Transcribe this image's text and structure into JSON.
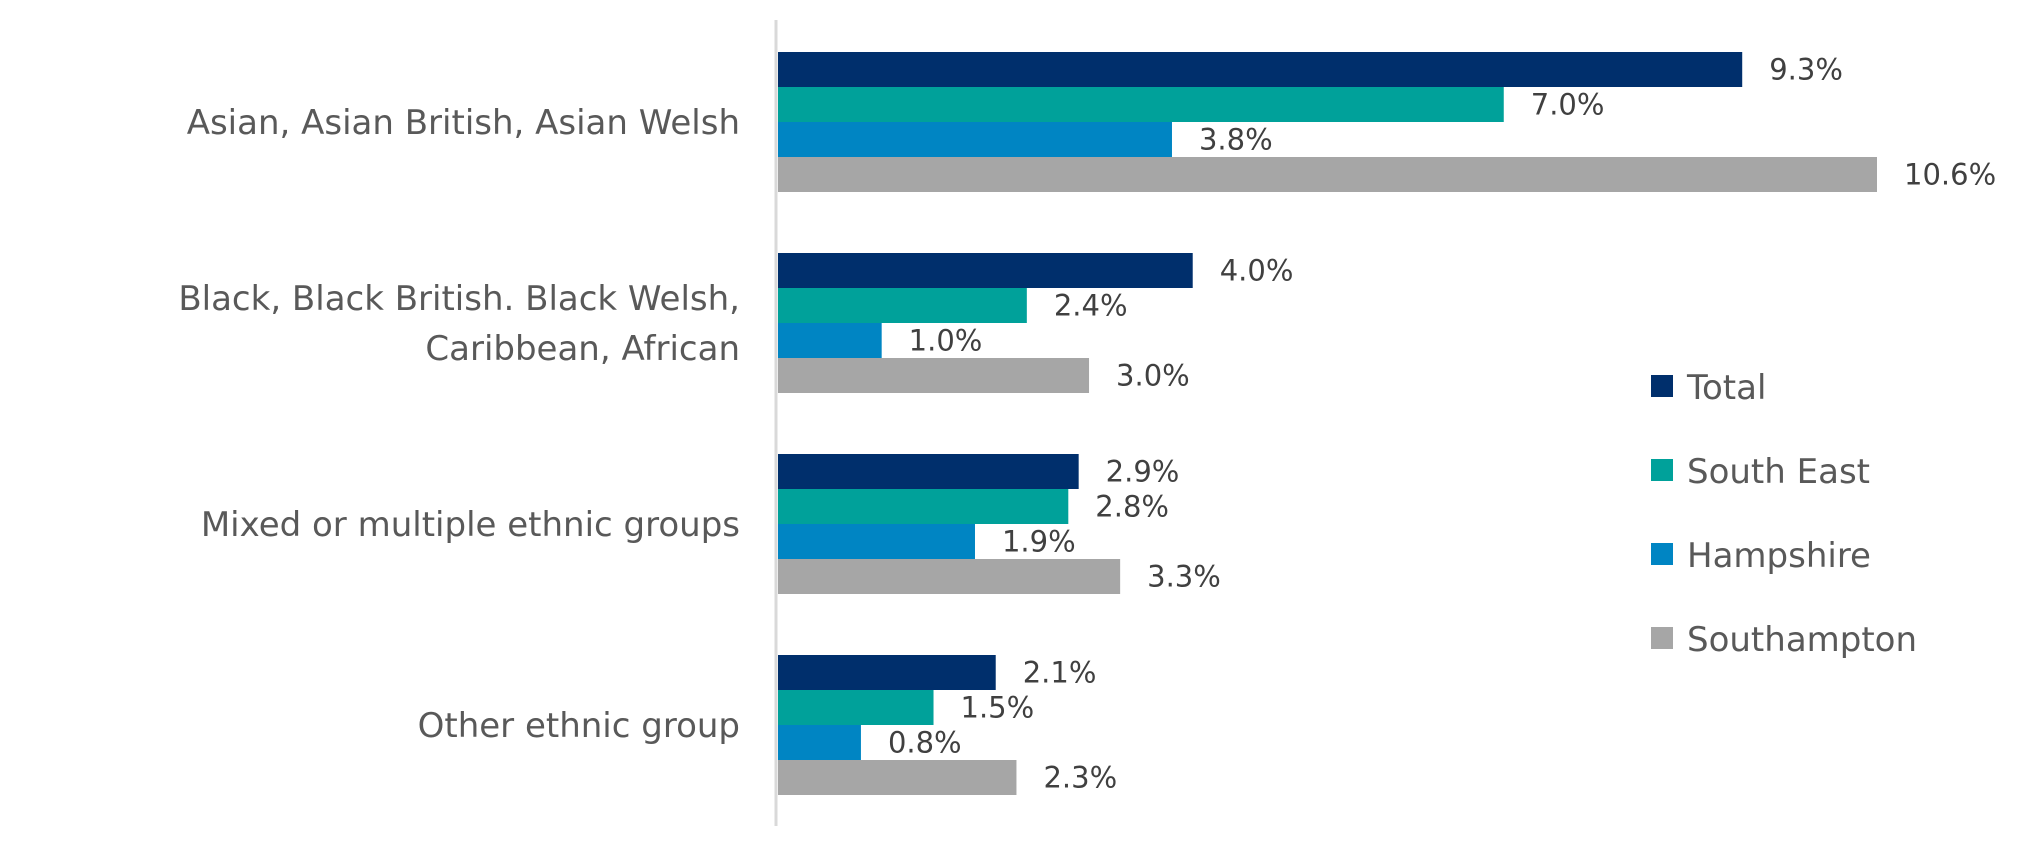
{
  "chart_data": {
    "type": "bar",
    "orientation": "horizontal",
    "title": "",
    "xlabel": "",
    "ylabel": "",
    "xlim": [
      0,
      11.2
    ],
    "grid": false,
    "legend_position": "right",
    "categories": [
      [
        "Asian, Asian British, Asian Welsh"
      ],
      [
        "Black, Black British. Black Welsh,",
        "Caribbean, African"
      ],
      [
        "Mixed or multiple ethnic groups"
      ],
      [
        "Other ethnic group"
      ]
    ],
    "series": [
      {
        "name": "Total",
        "color": "#002f6c",
        "values": [
          9.3,
          4.0,
          2.9,
          2.1
        ],
        "labels": [
          "9.3%",
          "4.0%",
          "2.9%",
          "2.1%"
        ]
      },
      {
        "name": "South East",
        "color": "#00a19a",
        "values": [
          7.0,
          2.4,
          2.8,
          1.5
        ],
        "labels": [
          "7.0%",
          "2.4%",
          "2.8%",
          "1.5%"
        ]
      },
      {
        "name": "Hampshire",
        "color": "#0085c3",
        "values": [
          3.8,
          1.0,
          1.9,
          0.8
        ],
        "labels": [
          "3.8%",
          "1.0%",
          "1.9%",
          "0.8%"
        ]
      },
      {
        "name": "Southampton",
        "color": "#a6a6a6",
        "values": [
          10.6,
          3.0,
          3.3,
          2.3
        ],
        "labels": [
          "10.6%",
          "3.0%",
          "3.3%",
          "2.3%"
        ]
      }
    ]
  }
}
